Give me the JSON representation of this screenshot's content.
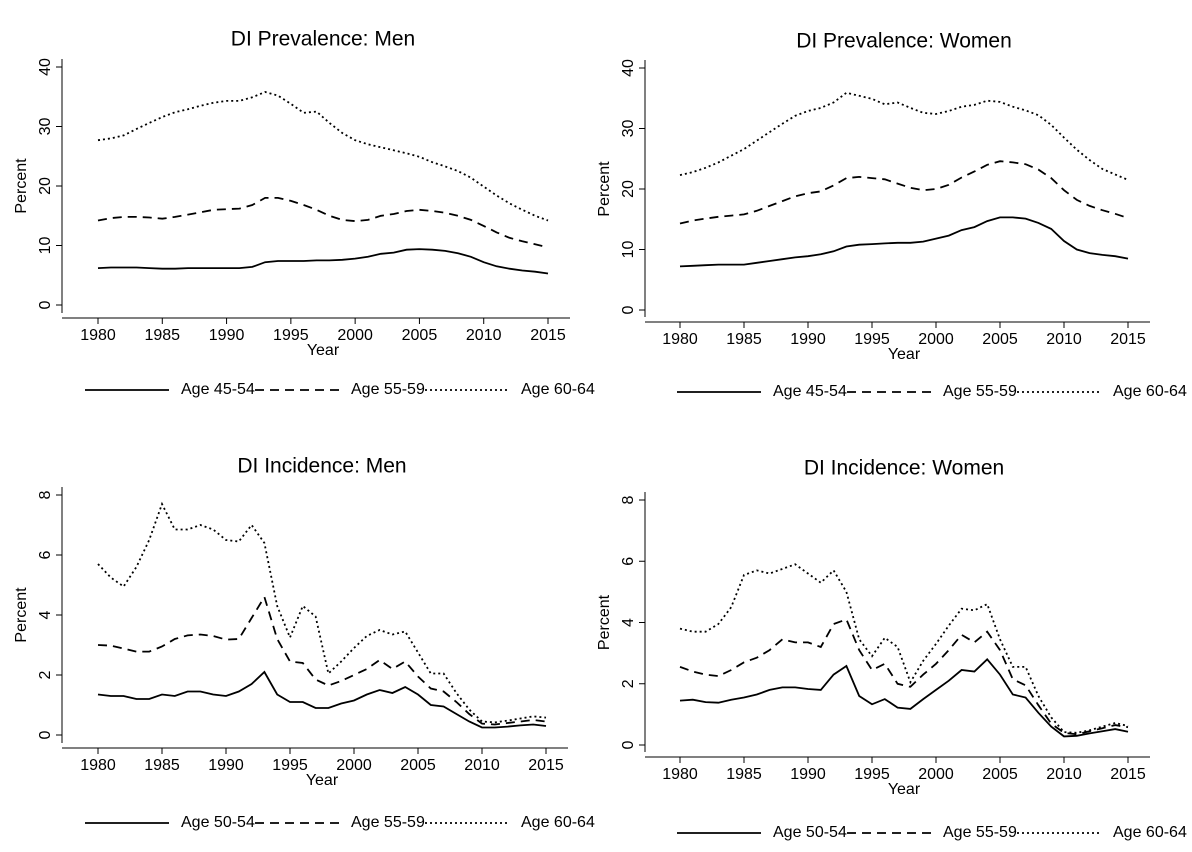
{
  "chart_data": [
    {
      "type": "line",
      "title": "DI Prevalence: Men",
      "x_label": "Year",
      "y_label": "Percent",
      "x": [
        1980,
        1981,
        1982,
        1983,
        1984,
        1985,
        1986,
        1987,
        1988,
        1989,
        1990,
        1991,
        1992,
        1993,
        1994,
        1995,
        1996,
        1997,
        1998,
        1999,
        2000,
        2001,
        2002,
        2003,
        2004,
        2005,
        2006,
        2007,
        2008,
        2009,
        2010,
        2011,
        2012,
        2013,
        2014,
        2015
      ],
      "xlim": [
        1980,
        2015
      ],
      "xticks": [
        1980,
        1985,
        1990,
        1995,
        2000,
        2005,
        2010,
        2015
      ],
      "ylim": [
        0,
        40
      ],
      "yticks": [
        0,
        10,
        20,
        30,
        40
      ],
      "grid": false,
      "series": [
        {
          "name": "Age 45-54",
          "color": "#000000",
          "line_style": "solid",
          "values": [
            6.2,
            6.3,
            6.3,
            6.3,
            6.2,
            6.1,
            6.1,
            6.2,
            6.2,
            6.2,
            6.2,
            6.2,
            6.4,
            7.2,
            7.4,
            7.4,
            7.4,
            7.5,
            7.5,
            7.6,
            7.8,
            8.1,
            8.6,
            8.8,
            9.3,
            9.4,
            9.3,
            9.1,
            8.7,
            8.1,
            7.2,
            6.5,
            6.1,
            5.8,
            5.6,
            5.3
          ]
        },
        {
          "name": "Age 55-59",
          "color": "#000000",
          "line_style": "dashed",
          "values": [
            14.2,
            14.6,
            14.8,
            14.8,
            14.7,
            14.5,
            14.8,
            15.2,
            15.6,
            16.0,
            16.1,
            16.2,
            16.8,
            18.0,
            18.0,
            17.5,
            16.8,
            16.0,
            15.0,
            14.3,
            14.1,
            14.3,
            15.0,
            15.3,
            15.8,
            16.0,
            15.8,
            15.5,
            15.0,
            14.3,
            13.3,
            12.2,
            11.3,
            10.7,
            10.2,
            9.7
          ]
        },
        {
          "name": "Age 60-64",
          "color": "#000000",
          "line_style": "dotted",
          "values": [
            27.7,
            28.0,
            28.5,
            29.6,
            30.6,
            31.6,
            32.4,
            32.9,
            33.5,
            34.0,
            34.3,
            34.3,
            34.9,
            35.8,
            35.2,
            33.8,
            32.3,
            32.5,
            30.6,
            28.9,
            27.7,
            27.0,
            26.5,
            26.0,
            25.5,
            24.9,
            24.0,
            23.3,
            22.5,
            21.4,
            19.9,
            18.4,
            17.1,
            16.0,
            15.0,
            14.2
          ]
        }
      ]
    },
    {
      "type": "line",
      "title": "DI Prevalence: Women",
      "x_label": "Year",
      "y_label": "Percent",
      "x": [
        1980,
        1981,
        1982,
        1983,
        1984,
        1985,
        1986,
        1987,
        1988,
        1989,
        1990,
        1991,
        1992,
        1993,
        1994,
        1995,
        1996,
        1997,
        1998,
        1999,
        2000,
        2001,
        2002,
        2003,
        2004,
        2005,
        2006,
        2007,
        2008,
        2009,
        2010,
        2011,
        2012,
        2013,
        2014,
        2015
      ],
      "xlim": [
        1980,
        2015
      ],
      "xticks": [
        1980,
        1985,
        1990,
        1995,
        2000,
        2005,
        2010,
        2015
      ],
      "ylim": [
        0,
        40
      ],
      "yticks": [
        0,
        10,
        20,
        30,
        40
      ],
      "grid": false,
      "series": [
        {
          "name": "Age 45-54",
          "color": "#000000",
          "line_style": "solid",
          "values": [
            7.2,
            7.3,
            7.4,
            7.5,
            7.5,
            7.5,
            7.8,
            8.1,
            8.4,
            8.7,
            8.9,
            9.2,
            9.7,
            10.5,
            10.8,
            10.9,
            11.0,
            11.1,
            11.1,
            11.3,
            11.8,
            12.3,
            13.2,
            13.7,
            14.7,
            15.3,
            15.3,
            15.1,
            14.4,
            13.4,
            11.4,
            10.0,
            9.4,
            9.1,
            8.9,
            8.5
          ]
        },
        {
          "name": "Age 55-59",
          "color": "#000000",
          "line_style": "dashed",
          "values": [
            14.3,
            14.8,
            15.1,
            15.4,
            15.6,
            15.8,
            16.4,
            17.2,
            18.0,
            18.8,
            19.3,
            19.6,
            20.6,
            21.8,
            22.0,
            21.8,
            21.6,
            20.9,
            20.2,
            19.8,
            20.0,
            20.7,
            21.9,
            22.9,
            24.0,
            24.6,
            24.4,
            24.1,
            23.2,
            21.8,
            19.8,
            18.2,
            17.2,
            16.5,
            15.9,
            15.2
          ]
        },
        {
          "name": "Age 60-64",
          "color": "#000000",
          "line_style": "dotted",
          "values": [
            22.3,
            22.8,
            23.5,
            24.4,
            25.5,
            26.6,
            28.0,
            29.4,
            30.8,
            32.1,
            32.9,
            33.4,
            34.3,
            35.9,
            35.4,
            34.9,
            34.0,
            34.3,
            33.4,
            32.6,
            32.4,
            32.9,
            33.6,
            33.9,
            34.6,
            34.4,
            33.6,
            33.0,
            32.2,
            30.6,
            28.5,
            26.5,
            24.8,
            23.3,
            22.4,
            21.5
          ]
        }
      ]
    },
    {
      "type": "line",
      "title": "DI Incidence: Men",
      "x_label": "Year",
      "y_label": "Percent",
      "x": [
        1980,
        1981,
        1982,
        1983,
        1984,
        1985,
        1986,
        1987,
        1988,
        1989,
        1990,
        1991,
        1992,
        1993,
        1994,
        1995,
        1996,
        1997,
        1998,
        1999,
        2000,
        2001,
        2002,
        2003,
        2004,
        2005,
        2006,
        2007,
        2008,
        2009,
        2010,
        2011,
        2012,
        2013,
        2014,
        2015
      ],
      "xlim": [
        1980,
        2015
      ],
      "xticks": [
        1980,
        1985,
        1990,
        1995,
        2000,
        2005,
        2010,
        2015
      ],
      "ylim": [
        0,
        8
      ],
      "yticks": [
        0,
        2,
        4,
        6,
        8
      ],
      "grid": false,
      "series": [
        {
          "name": "Age 50-54",
          "color": "#000000",
          "line_style": "solid",
          "values": [
            1.35,
            1.3,
            1.3,
            1.2,
            1.2,
            1.35,
            1.3,
            1.45,
            1.45,
            1.35,
            1.3,
            1.45,
            1.7,
            2.1,
            1.35,
            1.1,
            1.1,
            0.9,
            0.9,
            1.05,
            1.15,
            1.35,
            1.5,
            1.4,
            1.6,
            1.35,
            1.0,
            0.95,
            0.7,
            0.45,
            0.25,
            0.25,
            0.28,
            0.32,
            0.35,
            0.3
          ]
        },
        {
          "name": "Age 55-59",
          "color": "#000000",
          "line_style": "dashed",
          "values": [
            3.0,
            2.98,
            2.88,
            2.78,
            2.78,
            2.95,
            3.2,
            3.32,
            3.35,
            3.3,
            3.18,
            3.2,
            3.9,
            4.6,
            3.2,
            2.45,
            2.4,
            1.85,
            1.65,
            1.8,
            2.0,
            2.2,
            2.5,
            2.2,
            2.45,
            1.95,
            1.55,
            1.45,
            1.1,
            0.7,
            0.38,
            0.35,
            0.4,
            0.45,
            0.5,
            0.45
          ]
        },
        {
          "name": "Age 60-64",
          "color": "#000000",
          "line_style": "dotted",
          "values": [
            5.7,
            5.25,
            4.95,
            5.6,
            6.5,
            7.7,
            6.85,
            6.85,
            7.0,
            6.85,
            6.5,
            6.45,
            7.0,
            6.4,
            4.3,
            3.25,
            4.3,
            3.95,
            2.05,
            2.45,
            2.9,
            3.3,
            3.5,
            3.35,
            3.45,
            2.75,
            2.05,
            2.05,
            1.4,
            0.85,
            0.45,
            0.42,
            0.48,
            0.55,
            0.62,
            0.58
          ]
        }
      ]
    },
    {
      "type": "line",
      "title": "DI Incidence: Women",
      "x_label": "Year",
      "y_label": "Percent",
      "x": [
        1980,
        1981,
        1982,
        1983,
        1984,
        1985,
        1986,
        1987,
        1988,
        1989,
        1990,
        1991,
        1992,
        1993,
        1994,
        1995,
        1996,
        1997,
        1998,
        1999,
        2000,
        2001,
        2002,
        2003,
        2004,
        2005,
        2006,
        2007,
        2008,
        2009,
        2010,
        2011,
        2012,
        2013,
        2014,
        2015
      ],
      "xlim": [
        1980,
        2015
      ],
      "xticks": [
        1980,
        1985,
        1990,
        1995,
        2000,
        2005,
        2010,
        2015
      ],
      "ylim": [
        0,
        8
      ],
      "yticks": [
        0,
        2,
        4,
        6,
        8
      ],
      "grid": false,
      "series": [
        {
          "name": "Age 50-54",
          "color": "#000000",
          "line_style": "solid",
          "values": [
            1.45,
            1.48,
            1.4,
            1.38,
            1.48,
            1.55,
            1.65,
            1.8,
            1.88,
            1.88,
            1.83,
            1.8,
            2.3,
            2.58,
            1.6,
            1.33,
            1.5,
            1.22,
            1.18,
            1.5,
            1.8,
            2.1,
            2.45,
            2.4,
            2.8,
            2.3,
            1.65,
            1.55,
            1.05,
            0.6,
            0.28,
            0.3,
            0.38,
            0.45,
            0.52,
            0.43
          ]
        },
        {
          "name": "Age 55-59",
          "color": "#000000",
          "line_style": "dashed",
          "values": [
            2.55,
            2.4,
            2.3,
            2.25,
            2.45,
            2.7,
            2.85,
            3.1,
            3.45,
            3.35,
            3.35,
            3.2,
            3.95,
            4.1,
            3.1,
            2.45,
            2.65,
            2.0,
            1.9,
            2.3,
            2.65,
            3.1,
            3.6,
            3.35,
            3.7,
            3.1,
            2.15,
            1.95,
            1.3,
            0.7,
            0.4,
            0.35,
            0.45,
            0.55,
            0.65,
            0.58
          ]
        },
        {
          "name": "Age 60-64",
          "color": "#000000",
          "line_style": "dotted",
          "values": [
            3.8,
            3.7,
            3.7,
            3.95,
            4.5,
            5.55,
            5.7,
            5.6,
            5.75,
            5.9,
            5.6,
            5.3,
            5.7,
            5.0,
            3.45,
            2.9,
            3.5,
            3.2,
            2.05,
            2.75,
            3.3,
            3.9,
            4.45,
            4.4,
            4.6,
            3.45,
            2.55,
            2.55,
            1.6,
            0.9,
            0.42,
            0.4,
            0.48,
            0.6,
            0.72,
            0.62
          ]
        }
      ]
    }
  ]
}
